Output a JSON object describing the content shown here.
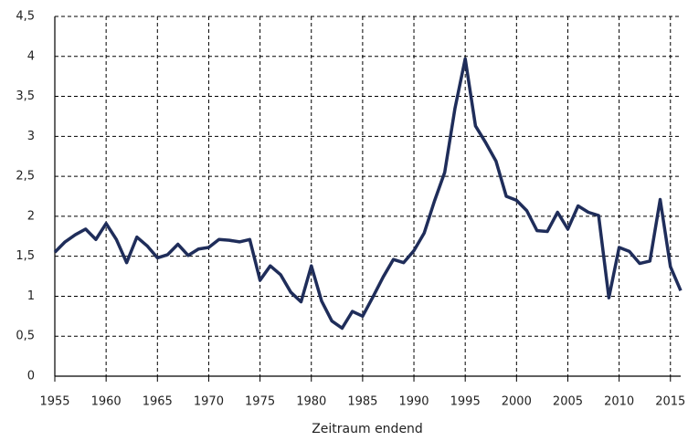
{
  "chart_data": {
    "type": "line",
    "x_label": "Zeitraum endend",
    "x": [
      1955,
      1956,
      1957,
      1958,
      1959,
      1960,
      1961,
      1962,
      1963,
      1964,
      1965,
      1966,
      1967,
      1968,
      1969,
      1970,
      1971,
      1972,
      1973,
      1974,
      1975,
      1976,
      1977,
      1978,
      1979,
      1980,
      1981,
      1982,
      1983,
      1984,
      1985,
      1986,
      1987,
      1988,
      1989,
      1990,
      1991,
      1992,
      1993,
      1994,
      1995,
      1996,
      1997,
      1998,
      1999,
      2000,
      2001,
      2002,
      2003,
      2004,
      2005,
      2006,
      2007,
      2008,
      2009,
      2010,
      2011,
      2012,
      2013,
      2014,
      2015,
      2016
    ],
    "series": [
      {
        "color": "#1f2d5a",
        "values": [
          1.55,
          1.68,
          1.77,
          1.84,
          1.71,
          1.91,
          1.71,
          1.42,
          1.74,
          1.63,
          1.48,
          1.52,
          1.65,
          1.51,
          1.59,
          1.61,
          1.71,
          1.7,
          1.68,
          1.71,
          1.2,
          1.38,
          1.27,
          1.05,
          0.93,
          1.38,
          0.94,
          0.69,
          0.6,
          0.81,
          0.75,
          0.99,
          1.24,
          1.46,
          1.42,
          1.57,
          1.79,
          2.19,
          2.55,
          3.35,
          3.97,
          3.13,
          2.92,
          2.69,
          2.25,
          2.2,
          2.07,
          1.82,
          1.81,
          2.05,
          1.84,
          2.13,
          2.05,
          2.01,
          0.98,
          1.61,
          1.56,
          1.41,
          1.44,
          2.21,
          1.37,
          1.07
        ]
      }
    ],
    "xlim": [
      1955,
      2016
    ],
    "xticks": [
      1955,
      1960,
      1965,
      1970,
      1975,
      1980,
      1985,
      1990,
      1995,
      2000,
      2005,
      2010,
      2015
    ],
    "ylim": [
      0,
      4.5
    ],
    "yticks": [
      0,
      {
        "value": 0.5,
        "label": "0,5"
      },
      1,
      {
        "value": 1.5,
        "label": "1,5"
      },
      2,
      {
        "value": 2.5,
        "label": "2,5"
      },
      3,
      {
        "value": 3.5,
        "label": "3,5"
      },
      4,
      {
        "value": 4.5,
        "label": "4,5"
      }
    ],
    "grid": true
  }
}
